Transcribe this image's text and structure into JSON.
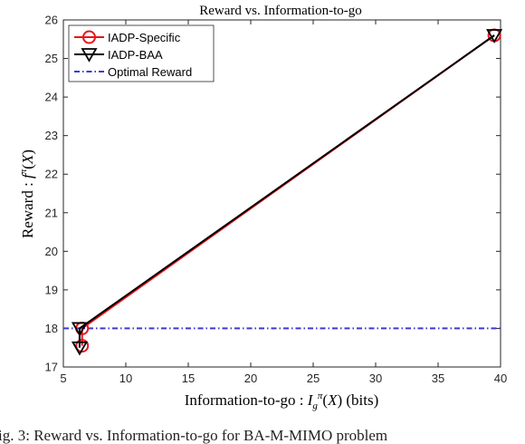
{
  "chart_data": {
    "type": "line",
    "title": "Reward vs. Information-to-go",
    "xlabel": "Information-to-go : I_g^π(X) (bits)",
    "ylabel": "Reward : f^π(X)",
    "xlim": [
      5,
      40
    ],
    "ylim": [
      17,
      26
    ],
    "xticks": [
      5,
      10,
      15,
      20,
      25,
      30,
      35,
      40
    ],
    "yticks": [
      17,
      18,
      19,
      20,
      21,
      22,
      23,
      24,
      25,
      26
    ],
    "grid": false,
    "legend_position": "top-left",
    "series": [
      {
        "name": "IADP-Specific",
        "color": "#e8141b",
        "marker": "circle",
        "points": [
          [
            6.5,
            17.55
          ],
          [
            6.5,
            18.0
          ],
          [
            39.5,
            25.6
          ]
        ]
      },
      {
        "name": "IADP-BAA",
        "color": "#000000",
        "marker": "triangle-down",
        "points": [
          [
            6.3,
            17.5
          ],
          [
            6.3,
            18.0
          ],
          [
            39.5,
            25.6
          ]
        ]
      },
      {
        "name": "Optimal Reward",
        "color": "#3a3ad4",
        "style": "dash-dot",
        "points": [
          [
            5,
            18.0
          ],
          [
            40,
            18.0
          ]
        ]
      }
    ]
  },
  "caption": "ig. 3: Reward vs. Information-to-go for BA-M-MIMO problem"
}
